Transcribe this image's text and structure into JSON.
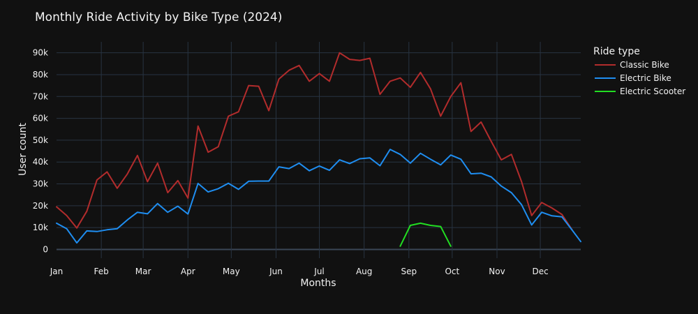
{
  "chart_data": {
    "type": "line",
    "title": "Monthly Ride Activity by Bike Type (2024)",
    "xlabel": "Months",
    "ylabel": "User count",
    "legend_title": "Ride type",
    "legend_position": "right",
    "grid": true,
    "x_tick_labels": [
      "Jan",
      "Feb",
      "Mar",
      "Apr",
      "May",
      "Jun",
      "Jul",
      "Aug",
      "Sep",
      "Oct",
      "Nov",
      "Dec"
    ],
    "y_ticks": [
      0,
      10000,
      20000,
      30000,
      40000,
      50000,
      60000,
      70000,
      80000,
      90000
    ],
    "y_tick_labels": [
      "0",
      "10k",
      "20k",
      "30k",
      "40k",
      "50k",
      "60k",
      "70k",
      "80k",
      "90k"
    ],
    "ylim": [
      -4000,
      95000
    ],
    "xlim": [
      "2024-01-01",
      "2024-12-29"
    ],
    "series": [
      {
        "name": "Classic Bike",
        "color": "#b22c2c",
        "x": [
          "2024-01-01",
          "2024-01-08",
          "2024-01-15",
          "2024-01-22",
          "2024-01-29",
          "2024-02-05",
          "2024-02-12",
          "2024-02-19",
          "2024-02-26",
          "2024-03-04",
          "2024-03-11",
          "2024-03-18",
          "2024-03-25",
          "2024-04-01",
          "2024-04-08",
          "2024-04-15",
          "2024-04-22",
          "2024-04-29",
          "2024-05-06",
          "2024-05-13",
          "2024-05-20",
          "2024-05-27",
          "2024-06-03",
          "2024-06-10",
          "2024-06-17",
          "2024-06-24",
          "2024-07-01",
          "2024-07-08",
          "2024-07-15",
          "2024-07-22",
          "2024-07-29",
          "2024-08-05",
          "2024-08-12",
          "2024-08-19",
          "2024-08-26",
          "2024-09-02",
          "2024-09-09",
          "2024-09-16",
          "2024-09-23",
          "2024-09-30",
          "2024-10-07",
          "2024-10-14",
          "2024-10-21",
          "2024-10-28",
          "2024-11-04",
          "2024-11-11",
          "2024-11-18",
          "2024-11-25",
          "2024-12-02",
          "2024-12-09",
          "2024-12-16",
          "2024-12-23"
        ],
        "y": [
          19500,
          15500,
          9800,
          17500,
          31800,
          35500,
          28000,
          34500,
          43000,
          31000,
          39500,
          26000,
          31500,
          23500,
          56500,
          44500,
          47000,
          61000,
          63000,
          75000,
          74700,
          63500,
          78000,
          82000,
          84200,
          77000,
          80500,
          77000,
          90000,
          87000,
          86500,
          87500,
          71000,
          77000,
          78500,
          74200,
          81000,
          73500,
          61000,
          70000,
          76300,
          54000,
          58300,
          49500,
          41000,
          43500,
          31000,
          15500,
          21500,
          19000,
          16000,
          9000
        ]
      },
      {
        "name": "Electric Bike",
        "color": "#1f8ef1",
        "x": [
          "2024-01-01",
          "2024-01-08",
          "2024-01-15",
          "2024-01-22",
          "2024-01-29",
          "2024-02-05",
          "2024-02-12",
          "2024-02-19",
          "2024-02-26",
          "2024-03-04",
          "2024-03-11",
          "2024-03-18",
          "2024-03-25",
          "2024-04-01",
          "2024-04-08",
          "2024-04-15",
          "2024-04-22",
          "2024-04-29",
          "2024-05-06",
          "2024-05-13",
          "2024-05-20",
          "2024-05-27",
          "2024-06-03",
          "2024-06-10",
          "2024-06-17",
          "2024-06-24",
          "2024-07-01",
          "2024-07-08",
          "2024-07-15",
          "2024-07-22",
          "2024-07-29",
          "2024-08-05",
          "2024-08-12",
          "2024-08-19",
          "2024-08-26",
          "2024-09-02",
          "2024-09-09",
          "2024-09-16",
          "2024-09-23",
          "2024-09-30",
          "2024-10-07",
          "2024-10-14",
          "2024-10-21",
          "2024-10-28",
          "2024-11-04",
          "2024-11-11",
          "2024-11-18",
          "2024-11-25",
          "2024-12-02",
          "2024-12-09",
          "2024-12-16",
          "2024-12-23",
          "2024-12-29"
        ],
        "y": [
          12000,
          9500,
          3000,
          8500,
          8200,
          9000,
          9500,
          13500,
          17000,
          16300,
          21000,
          17000,
          19800,
          16200,
          30200,
          26300,
          27800,
          30300,
          27500,
          31200,
          31300,
          31300,
          37800,
          37000,
          39500,
          36000,
          38200,
          36200,
          41000,
          39300,
          41500,
          41900,
          38300,
          45800,
          43500,
          39500,
          44000,
          41300,
          38700,
          43200,
          41300,
          34600,
          34900,
          33200,
          29000,
          26000,
          20500,
          11200,
          17000,
          15400,
          14900,
          8900,
          3600
        ]
      },
      {
        "name": "Electric Scooter",
        "color": "#22dd22",
        "x": [
          "2024-08-26",
          "2024-09-02",
          "2024-09-09",
          "2024-09-16",
          "2024-09-23",
          "2024-09-30"
        ],
        "y": [
          1500,
          11000,
          12000,
          11000,
          10500,
          1500
        ]
      }
    ]
  }
}
